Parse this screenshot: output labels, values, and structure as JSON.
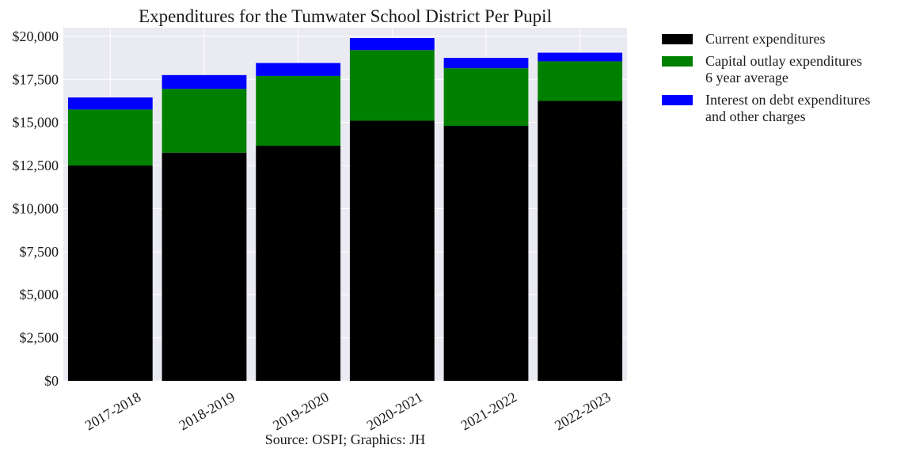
{
  "chart_data": {
    "type": "bar",
    "stacked": true,
    "title": "Expenditures for the Tumwater School District Per Pupil",
    "xlabel": "Source: OSPI; Graphics: JH",
    "ylabel": "",
    "categories": [
      "2017-2018",
      "2018-2019",
      "2019-2020",
      "2020-2021",
      "2021-2022",
      "2022-2023"
    ],
    "series": [
      {
        "name_lines": [
          "Current expenditures"
        ],
        "color": "#000000",
        "values": [
          12500,
          13250,
          13650,
          15100,
          14800,
          16250
        ]
      },
      {
        "name_lines": [
          "Capital outlay expenditures",
          "6 year average"
        ],
        "color": "#008000",
        "values": [
          3250,
          3700,
          4050,
          4100,
          3350,
          2300
        ]
      },
      {
        "name_lines": [
          "Interest on debt expenditures",
          "and other charges"
        ],
        "color": "#0000ff",
        "values": [
          700,
          800,
          750,
          700,
          600,
          500
        ]
      }
    ],
    "ylim": [
      0,
      20500
    ],
    "yticks": [
      0,
      2500,
      5000,
      7500,
      10000,
      12500,
      15000,
      17500,
      20000
    ],
    "ytick_labels": [
      "$0",
      "$2,500",
      "$5,000",
      "$7,500",
      "$10,000",
      "$12,500",
      "$15,000",
      "$17,500",
      "$20,000"
    ],
    "xtick_rotation_deg": -30,
    "grid": true,
    "background": "#eaeaf2",
    "legend_position": "outside-right-top"
  }
}
